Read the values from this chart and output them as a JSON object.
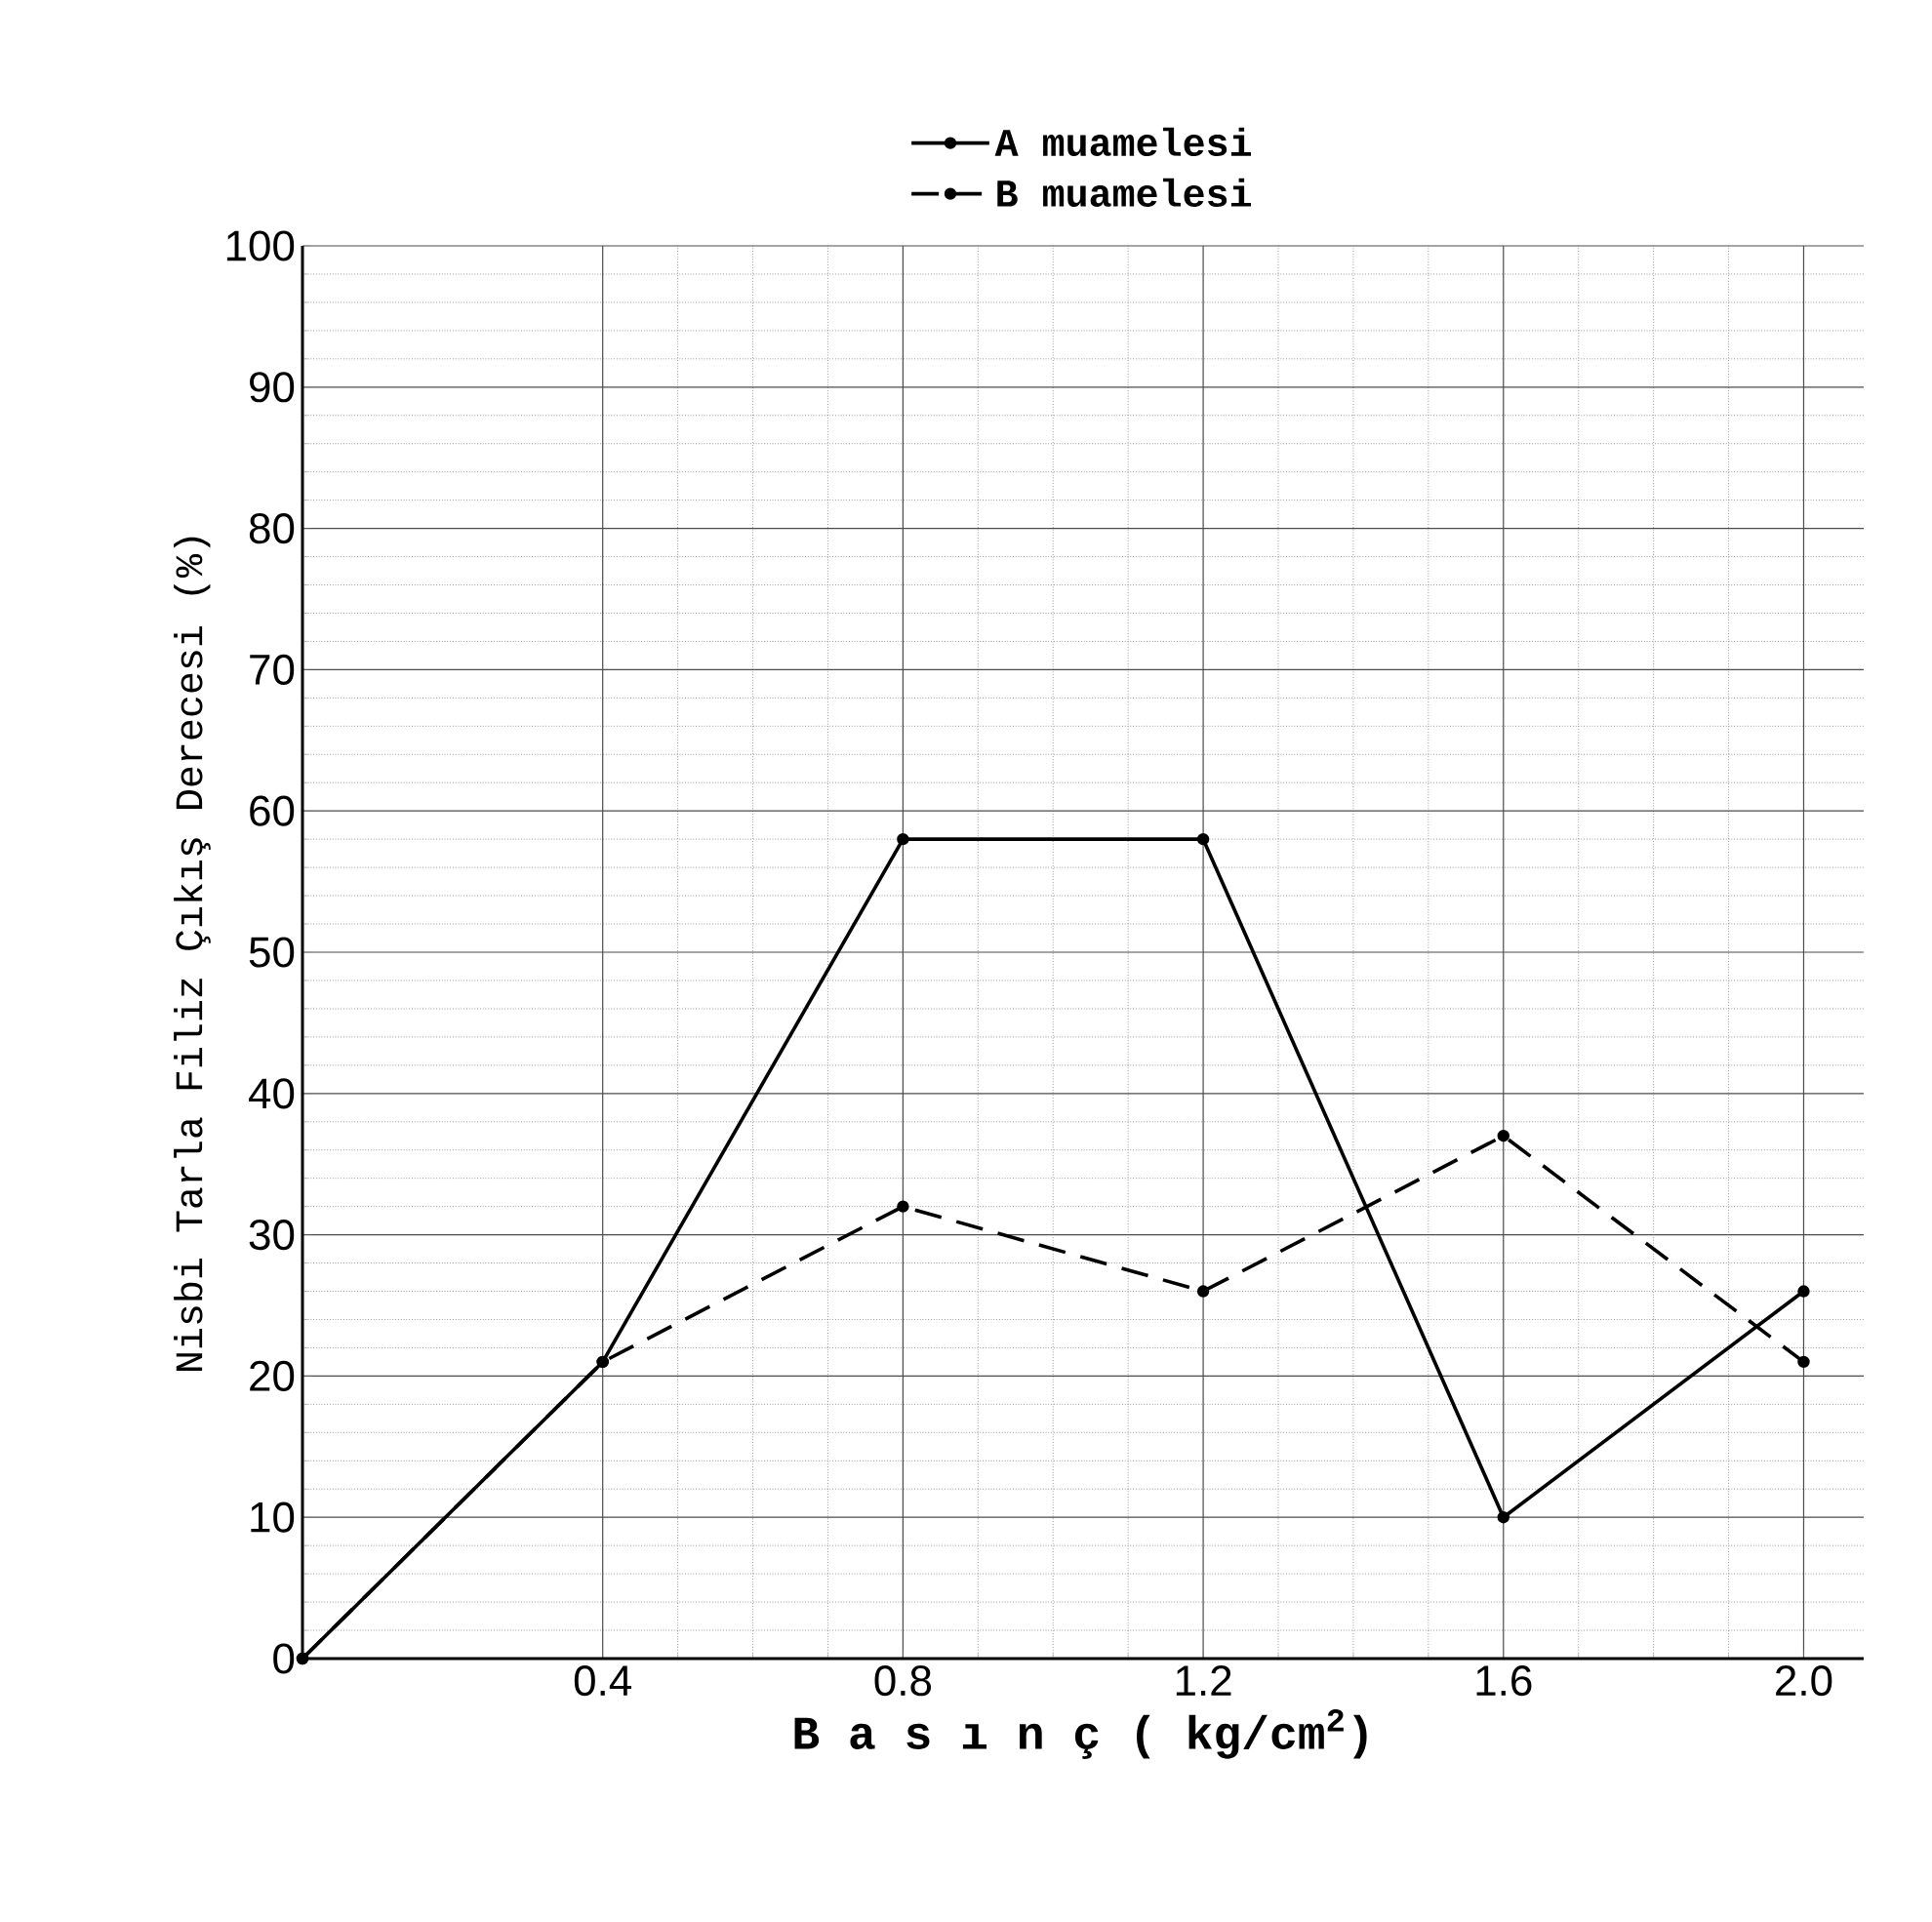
{
  "chart_data": {
    "type": "line",
    "xlabel": "B a s ı n ç ( kg/cm$^{2}$)",
    "ylabel": "Nisbi Tarla Filiz Çıkış Derecesi (%)",
    "x": [
      0,
      0.4,
      0.8,
      1.2,
      1.6,
      2.0
    ],
    "series": [
      {
        "name": "A muamelesi",
        "color": "#000000",
        "line_style": "solid",
        "values": [
          0,
          21,
          58,
          58,
          10,
          26
        ]
      },
      {
        "name": "B muamelesi",
        "color": "#000000",
        "line_style": "dashed",
        "values": [
          0,
          21,
          32,
          26,
          37,
          21
        ]
      }
    ],
    "xlim": [
      0,
      2.08
    ],
    "ylim": [
      0,
      100
    ],
    "xticks": [
      0.4,
      0.8,
      1.2,
      1.6,
      {
        "value": 2,
        "label": "2.0"
      }
    ],
    "yticks": [
      0,
      10,
      20,
      30,
      40,
      50,
      60,
      70,
      80,
      90,
      100
    ],
    "grid": true,
    "legend": "top",
    "marker": "circle"
  }
}
